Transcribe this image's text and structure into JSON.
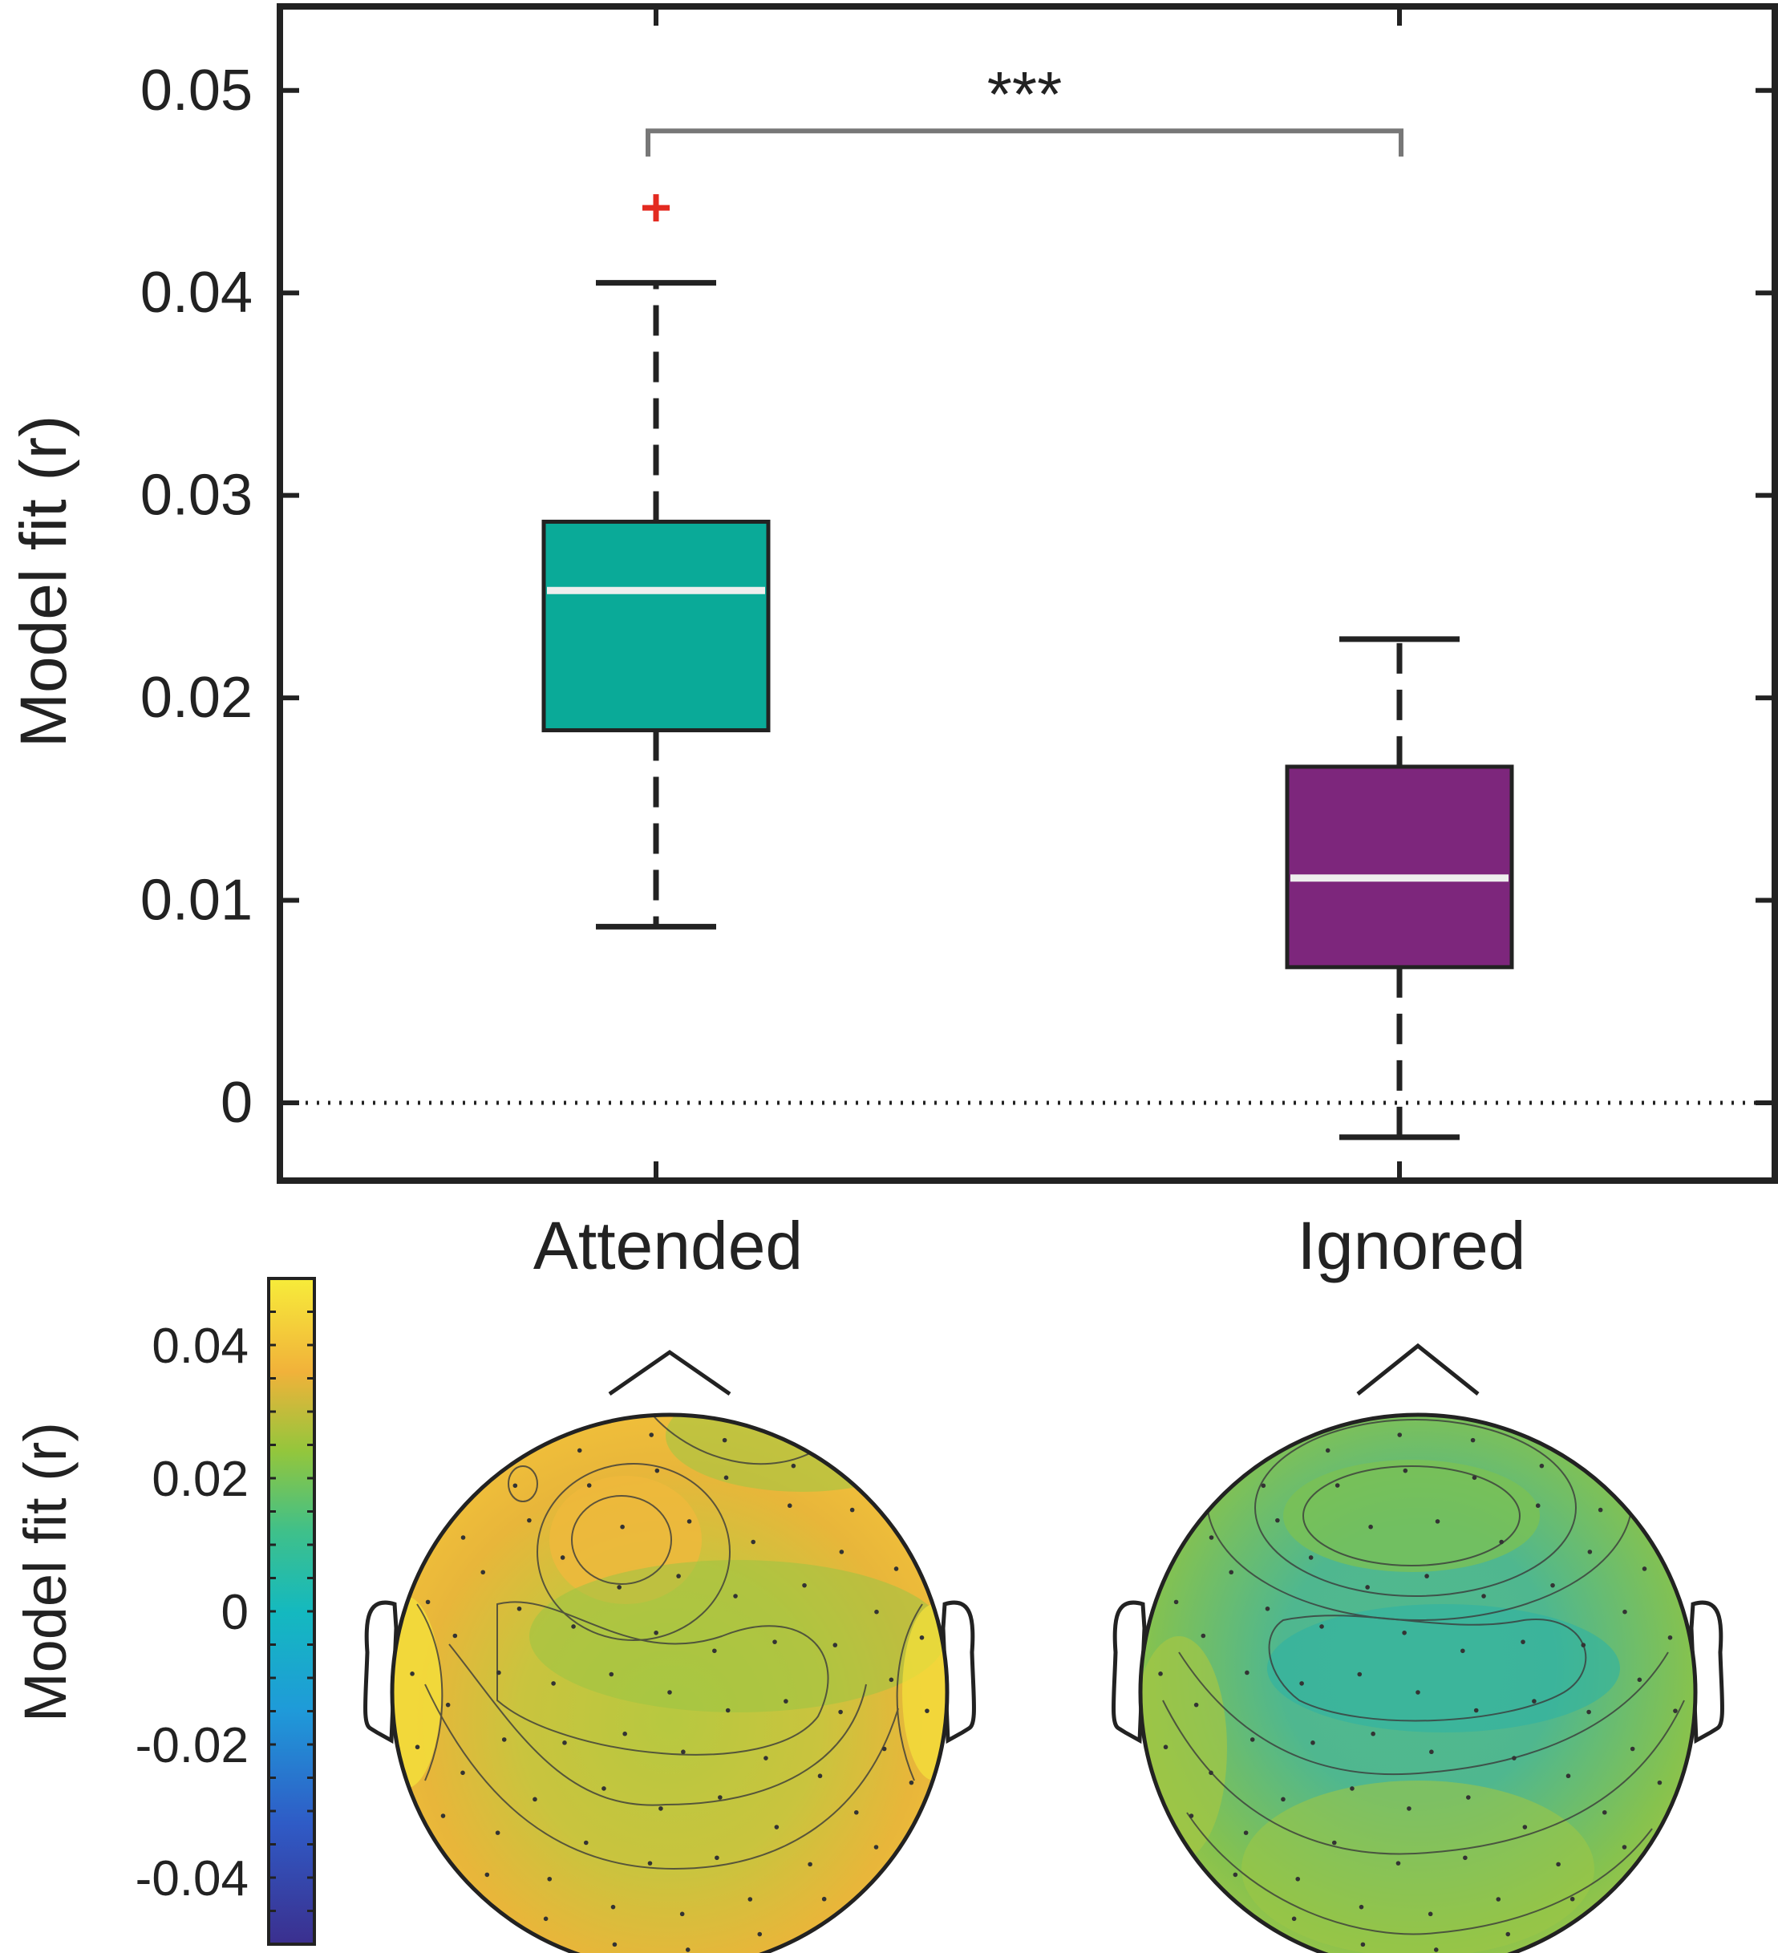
{
  "chart_data": [
    {
      "type": "box",
      "ylabel": "Model fit (r)",
      "ylim": [
        -0.004,
        0.054
      ],
      "yticks": [
        0,
        0.01,
        0.02,
        0.03,
        0.04,
        0.05
      ],
      "ytick_labels": [
        "0",
        "0.01",
        "0.02",
        "0.03",
        "0.04",
        "0.05"
      ],
      "reference_line": 0,
      "categories": [
        "Attended",
        "Ignored"
      ],
      "boxes": [
        {
          "name": "Attended",
          "whisker_low": 0.0087,
          "q1": 0.0184,
          "median": 0.0253,
          "q3": 0.0287,
          "whisker_high": 0.0405,
          "outliers": [
            0.0442
          ],
          "color": "#0aaa98"
        },
        {
          "name": "Ignored",
          "whisker_low": -0.0017,
          "q1": 0.0067,
          "median": 0.0111,
          "q3": 0.0166,
          "whisker_high": 0.0229,
          "outliers": [],
          "color": "#7d267c"
        }
      ],
      "significance": {
        "label": "***",
        "between": [
          "Attended",
          "Ignored"
        ],
        "y": 0.048
      }
    },
    {
      "type": "heatmap",
      "subtype": "scalp-topography",
      "colorbar_label": "Model fit (r)",
      "colorbar_range": [
        -0.05,
        0.05
      ],
      "colorbar_ticks": [
        0.04,
        0.02,
        0,
        -0.02,
        -0.04
      ],
      "colorbar_tick_labels": [
        "0.04",
        "0.02",
        "0",
        "-0.02",
        "-0.04"
      ],
      "colormap": [
        "#3b2f8e",
        "#2a7fd6",
        "#0fb9c6",
        "#3bbf8c",
        "#8cc63f",
        "#f2b53a",
        "#f6e83c"
      ],
      "maps": [
        {
          "name": "Attended",
          "approx_mean_r": 0.02
        },
        {
          "name": "Ignored",
          "approx_mean_r": 0.008
        }
      ]
    }
  ]
}
